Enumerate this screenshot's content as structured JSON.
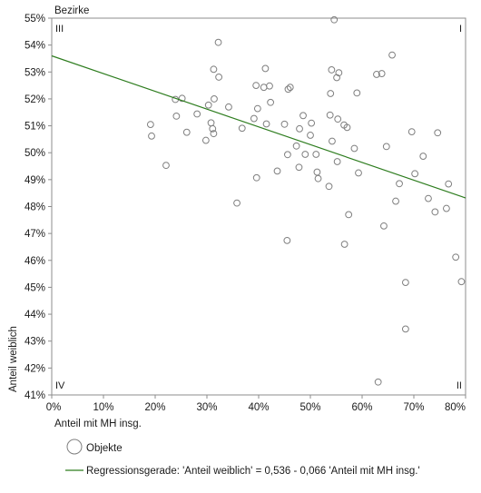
{
  "chart_data": {
    "type": "scatter",
    "title": "Bezirke",
    "xlabel": "Anteil mit MH insg.",
    "ylabel": "Anteil weiblich",
    "xlim": [
      0,
      0.8
    ],
    "ylim": [
      0.41,
      0.55
    ],
    "x_ticks": [
      "0%",
      "10%",
      "20%",
      "30%",
      "40%",
      "50%",
      "60%",
      "70%",
      "80%"
    ],
    "y_ticks": [
      "41%",
      "42%",
      "43%",
      "44%",
      "45%",
      "46%",
      "47%",
      "48%",
      "49%",
      "50%",
      "51%",
      "52%",
      "53%",
      "54%",
      "55%"
    ],
    "grid": false,
    "quadrants": {
      "top_left": "III",
      "top_right": "I",
      "bottom_left": "IV",
      "bottom_right": "II"
    },
    "series": [
      {
        "name": "Objekte",
        "marker": "open-circle",
        "color": "#7f7f7f",
        "points": [
          [
            0.191,
            0.5105
          ],
          [
            0.193,
            0.5062
          ],
          [
            0.221,
            0.4953
          ],
          [
            0.239,
            0.5198
          ],
          [
            0.241,
            0.5136
          ],
          [
            0.252,
            0.5202
          ],
          [
            0.261,
            0.5076
          ],
          [
            0.281,
            0.5144
          ],
          [
            0.298,
            0.5046
          ],
          [
            0.303,
            0.5177
          ],
          [
            0.308,
            0.5111
          ],
          [
            0.311,
            0.5089
          ],
          [
            0.313,
            0.531
          ],
          [
            0.313,
            0.5071
          ],
          [
            0.314,
            0.52
          ],
          [
            0.322,
            0.541
          ],
          [
            0.323,
            0.5281
          ],
          [
            0.342,
            0.517
          ],
          [
            0.358,
            0.4813
          ],
          [
            0.368,
            0.5091
          ],
          [
            0.391,
            0.5127
          ],
          [
            0.395,
            0.525
          ],
          [
            0.396,
            0.4907
          ],
          [
            0.398,
            0.5164
          ],
          [
            0.41,
            0.5243
          ],
          [
            0.413,
            0.5313
          ],
          [
            0.415,
            0.5107
          ],
          [
            0.421,
            0.5248
          ],
          [
            0.423,
            0.5187
          ],
          [
            0.436,
            0.4932
          ],
          [
            0.45,
            0.5106
          ],
          [
            0.455,
            0.4674
          ],
          [
            0.456,
            0.4993
          ],
          [
            0.457,
            0.5236
          ],
          [
            0.461,
            0.5243
          ],
          [
            0.473,
            0.5025
          ],
          [
            0.478,
            0.4946
          ],
          [
            0.479,
            0.5089
          ],
          [
            0.486,
            0.5138
          ],
          [
            0.49,
            0.4994
          ],
          [
            0.5,
            0.5065
          ],
          [
            0.502,
            0.511
          ],
          [
            0.511,
            0.4994
          ],
          [
            0.513,
            0.4928
          ],
          [
            0.515,
            0.4904
          ],
          [
            0.536,
            0.4875
          ],
          [
            0.538,
            0.514
          ],
          [
            0.539,
            0.522
          ],
          [
            0.541,
            0.5308
          ],
          [
            0.542,
            0.5043
          ],
          [
            0.546,
            0.5494
          ],
          [
            0.551,
            0.5279
          ],
          [
            0.552,
            0.4967
          ],
          [
            0.553,
            0.5125
          ],
          [
            0.555,
            0.5297
          ],
          [
            0.565,
            0.5103
          ],
          [
            0.566,
            0.466
          ],
          [
            0.571,
            0.5094
          ],
          [
            0.574,
            0.477
          ],
          [
            0.585,
            0.5016
          ],
          [
            0.59,
            0.5222
          ],
          [
            0.593,
            0.4925
          ],
          [
            0.628,
            0.5291
          ],
          [
            0.631,
            0.4148
          ],
          [
            0.638,
            0.5294
          ],
          [
            0.642,
            0.4728
          ],
          [
            0.647,
            0.5023
          ],
          [
            0.658,
            0.5363
          ],
          [
            0.665,
            0.482
          ],
          [
            0.672,
            0.4885
          ],
          [
            0.684,
            0.4345
          ],
          [
            0.684,
            0.4518
          ],
          [
            0.696,
            0.5078
          ],
          [
            0.702,
            0.4922
          ],
          [
            0.718,
            0.4987
          ],
          [
            0.728,
            0.483
          ],
          [
            0.741,
            0.478
          ],
          [
            0.746,
            0.5074
          ],
          [
            0.763,
            0.4793
          ],
          [
            0.767,
            0.4884
          ],
          [
            0.781,
            0.4612
          ],
          [
            0.792,
            0.4521
          ]
        ]
      }
    ],
    "regression": {
      "name": "Regressionsgerade: 'Anteil weiblich' = 0,536 - 0,066 'Anteil mit MH insg.'",
      "intercept": 0.536,
      "slope": -0.066,
      "color": "#2e7d1f"
    },
    "legend_position": "bottom-left"
  }
}
